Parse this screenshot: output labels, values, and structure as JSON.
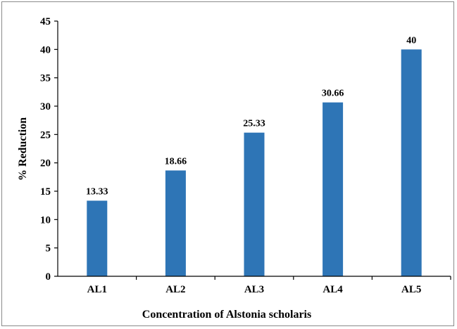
{
  "chart_data": {
    "type": "bar",
    "categories": [
      "AL1",
      "AL2",
      "AL3",
      "AL4",
      "AL5"
    ],
    "values": [
      13.33,
      18.66,
      25.33,
      30.66,
      40
    ],
    "data_labels": [
      "13.33",
      "18.66",
      "25.33",
      "30.66",
      "40"
    ],
    "xlabel": "Concentration of Alstonia scholaris",
    "ylabel": "% Reduction",
    "ylim": [
      0,
      45
    ],
    "yticks": [
      "0",
      "5",
      "10",
      "15",
      "20",
      "25",
      "30",
      "35",
      "40",
      "45"
    ],
    "grid": false,
    "legend": "none",
    "bar_color": "#2e75b6"
  }
}
